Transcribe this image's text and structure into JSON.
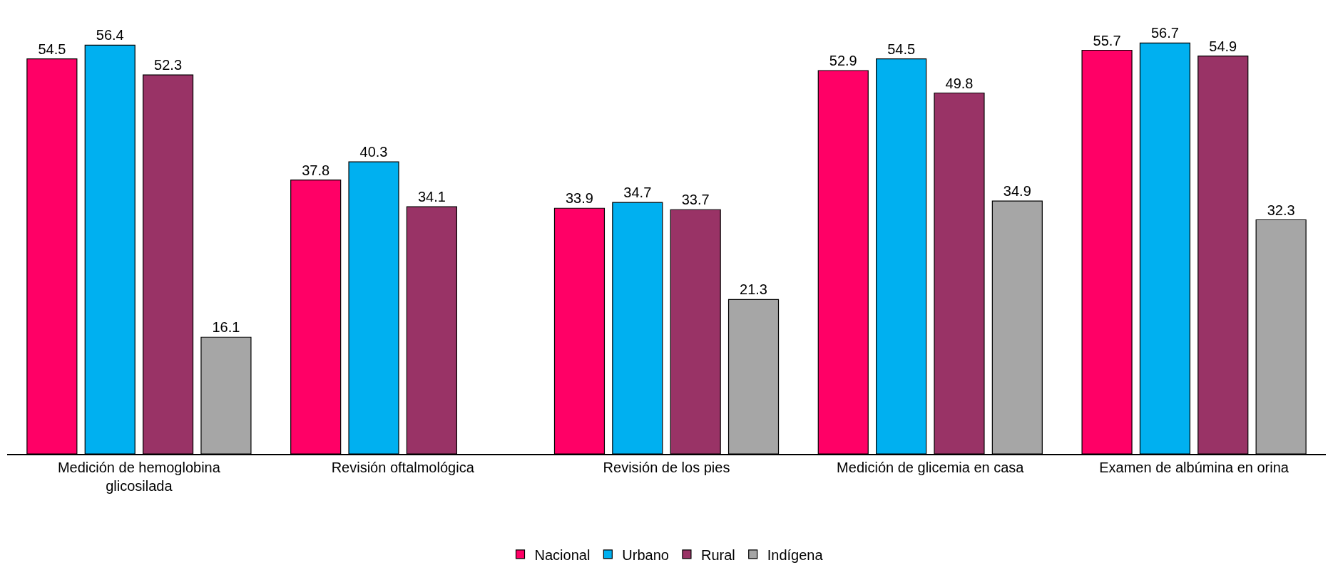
{
  "chart_data": {
    "type": "bar",
    "categories": [
      "Medición de hemoglobina glicosilada",
      "Revisión oftalmológica",
      "Revisión de los pies",
      "Medición de glicemia en casa",
      "Examen de albúmina en orina"
    ],
    "series": [
      {
        "name": "Nacional",
        "color": "#ff0066",
        "values": [
          54.5,
          37.8,
          33.9,
          52.9,
          55.7
        ]
      },
      {
        "name": "Urbano",
        "color": "#00b0f0",
        "values": [
          56.4,
          40.3,
          34.7,
          54.5,
          56.7
        ]
      },
      {
        "name": "Rural",
        "color": "#993366",
        "values": [
          52.3,
          34.1,
          33.7,
          49.8,
          54.9
        ]
      },
      {
        "name": "Indígena",
        "color": "#a6a6a6",
        "values": [
          16.1,
          null,
          21.3,
          34.9,
          32.3
        ]
      }
    ],
    "data_labels": true,
    "legend": "bottom",
    "tick_labels": "x"
  }
}
